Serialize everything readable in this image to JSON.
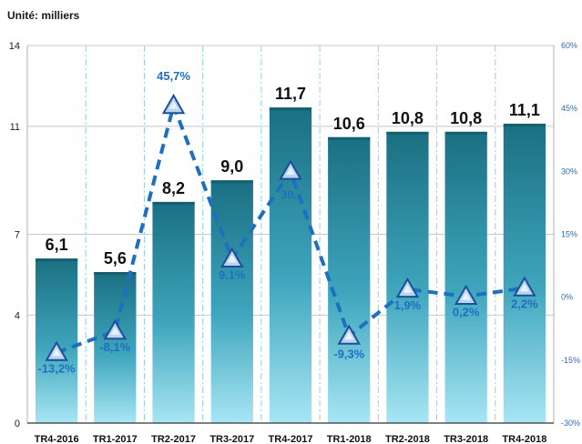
{
  "unit_label": "Unité: milliers",
  "chart_data": {
    "type": "bar+line",
    "categories": [
      "TR4-2016",
      "TR1-2017",
      "TR2-2017",
      "TR3-2017",
      "TR4-2017",
      "TR1-2018",
      "TR2-2018",
      "TR3-2018",
      "TR4-2018"
    ],
    "bar_values": [
      6.1,
      5.6,
      8.2,
      9.0,
      11.7,
      10.6,
      10.8,
      10.8,
      11.1
    ],
    "bar_labels": [
      "6,1",
      "5,6",
      "8,2",
      "9,0",
      "11,7",
      "10,6",
      "10,8",
      "10,8",
      "11,1"
    ],
    "line_values": [
      -13.2,
      -8.1,
      45.7,
      9.1,
      30,
      -9.3,
      1.9,
      0.2,
      2.2
    ],
    "line_labels": [
      "-13,2%",
      "-8,1%",
      "45,7%",
      "9,1%",
      "30..",
      "-9,3%",
      "1,9%",
      "0,2%",
      "2,2%"
    ],
    "y_left": {
      "ticks": [
        "0",
        "4",
        "7",
        "11",
        "14"
      ],
      "lim": [
        0,
        14
      ]
    },
    "y_right": {
      "ticks": [
        "-30%",
        "-15%",
        "0%",
        "15%",
        "30%",
        "45%",
        "60%"
      ],
      "lim": [
        -30,
        60
      ]
    },
    "colors": {
      "bar_top": "#1a6f82",
      "bar_bottom": "#9fe3f2",
      "line": "#1f6fc1",
      "marker_fill": "#b9d4ee",
      "label_pct": "#1f6fc1",
      "axis_right": "#2a6db5"
    }
  }
}
